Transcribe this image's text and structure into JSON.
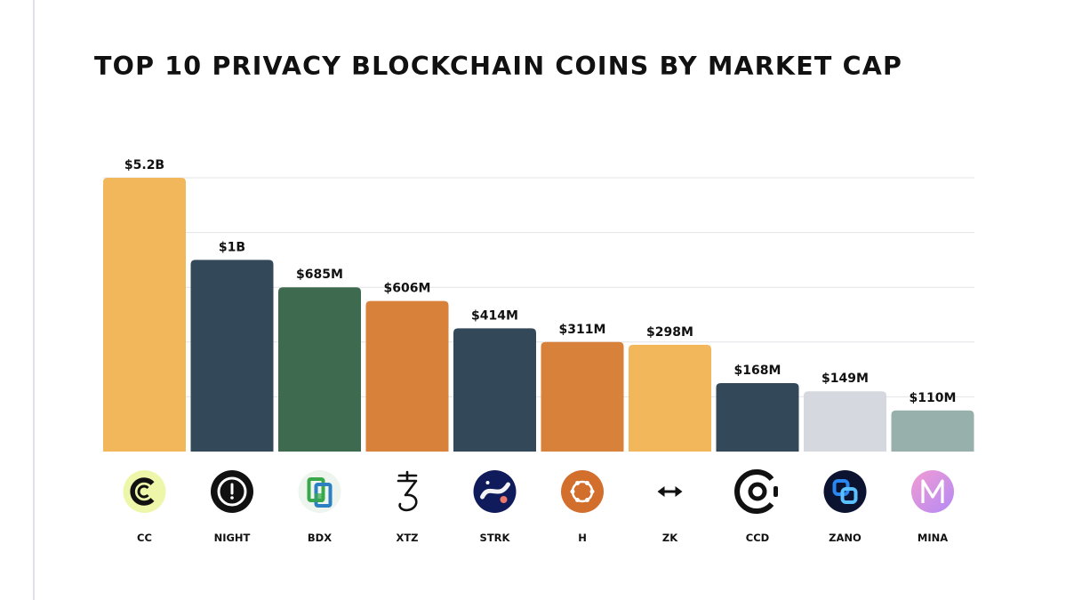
{
  "chart_data": {
    "type": "bar",
    "title": "TOP 10 PRIVACY BLOCKCHAIN COINS BY MARKET CAP",
    "xlabel": "",
    "ylabel": "",
    "categories": [
      "CC",
      "NIGHT",
      "BDX",
      "XTZ",
      "STRK",
      "H",
      "ZK",
      "CCD",
      "ZANO",
      "MINA"
    ],
    "value_labels": [
      "$5.2B",
      "$1B",
      "$685M",
      "$606M",
      "$414M",
      "$311M",
      "$298M",
      "$168M",
      "$149M",
      "$110M"
    ],
    "values": [
      5.0,
      3.5,
      3.0,
      2.75,
      2.25,
      2.0,
      1.95,
      1.25,
      1.1,
      0.75
    ],
    "values_note": "bar heights are drawn on a non-linear display scale; printed labels carry the true market caps",
    "ylim": [
      0,
      5
    ],
    "grid": true,
    "legend": "none",
    "bar_colors": [
      "#F2B65B",
      "#33495A",
      "#3E6B4F",
      "#D8813B",
      "#33495A",
      "#D8813B",
      "#F2B65B",
      "#33495A",
      "#D5D8DE",
      "#97B0AC"
    ],
    "icons": [
      "cc-coin-icon",
      "night-coin-icon",
      "bdx-coin-icon",
      "xtz-coin-icon",
      "strk-coin-icon",
      "h-coin-icon",
      "zk-coin-icon",
      "ccd-coin-icon",
      "zano-coin-icon",
      "mina-coin-icon"
    ]
  }
}
